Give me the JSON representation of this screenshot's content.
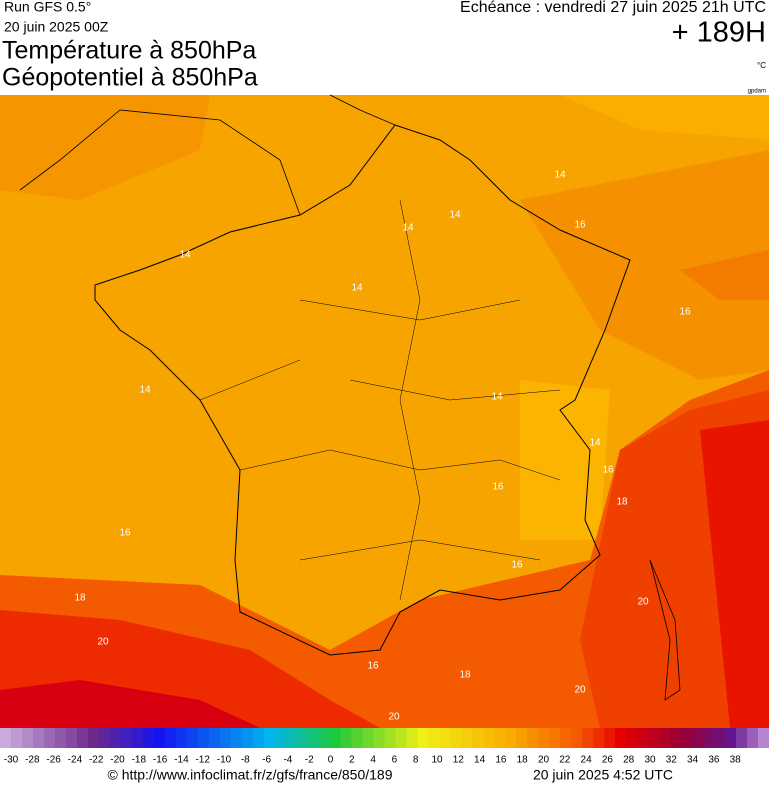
{
  "header": {
    "run": "Run GFS 0.5°",
    "date": "20 juin 2025 00Z",
    "title1": "Température à 850hPa",
    "title2": "Géopotentiel à 850hPa",
    "echeance": "Echéance : vendredi 27 juin 2025 21h UTC",
    "offset": "+ 189H",
    "unit": "°C",
    "credit": "gpdam"
  },
  "map": {
    "contour_labels": [
      14,
      14,
      14,
      14,
      16,
      14,
      16,
      14,
      14,
      14,
      16,
      18,
      16,
      18,
      20,
      20,
      20,
      16,
      18,
      20,
      16,
      16
    ]
  },
  "legend": {
    "labels": [
      -30,
      -28,
      -26,
      -24,
      -22,
      -20,
      -18,
      -16,
      -14,
      -12,
      -10,
      -8,
      -6,
      -4,
      -2,
      0,
      2,
      4,
      6,
      8,
      10,
      12,
      14,
      16,
      18,
      20,
      22,
      24,
      26,
      28,
      30,
      32,
      34,
      36,
      38
    ]
  },
  "footer": {
    "url": "© http://www.infoclimat.fr/z/gfs/france/850/189",
    "stamp": "20 juin 2025  4:52 UTC"
  }
}
